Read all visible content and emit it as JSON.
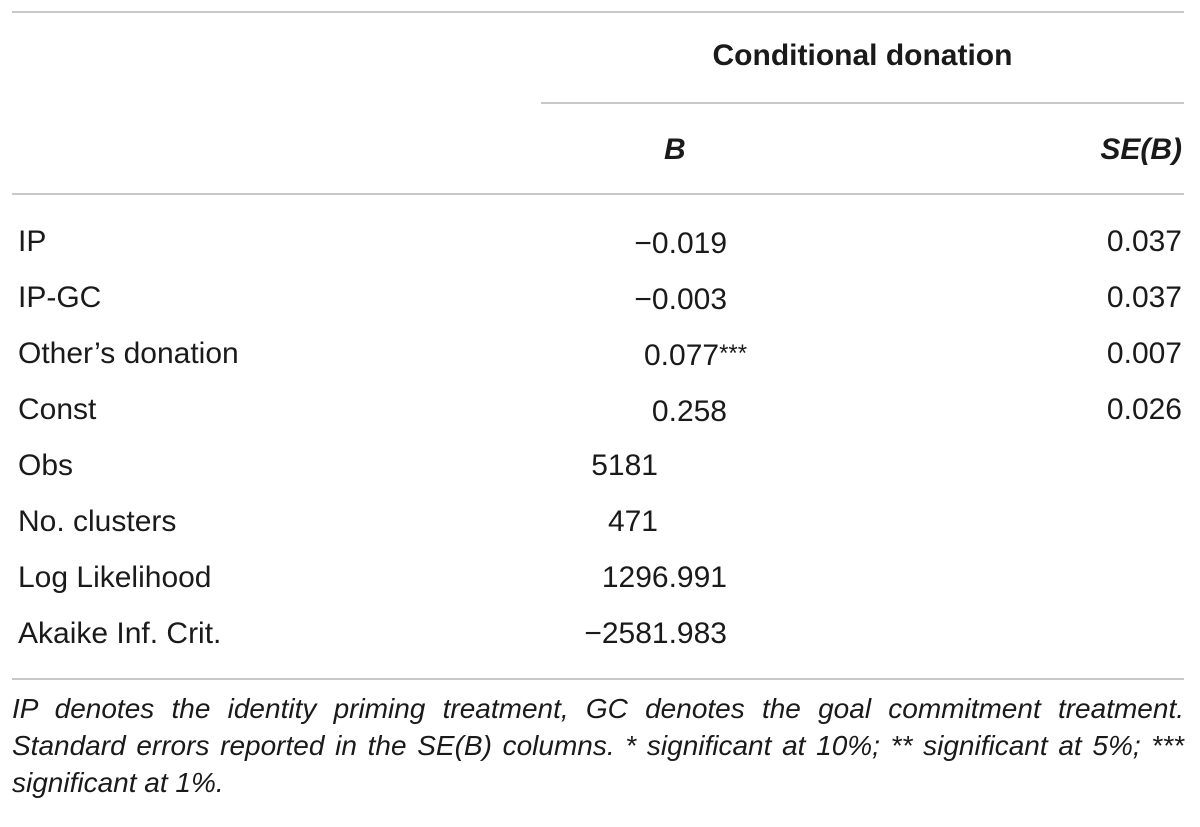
{
  "table": {
    "group_header": "Conditional donation",
    "columns": [
      "B",
      "SE(B)"
    ],
    "rows": [
      {
        "label": "IP",
        "b": "−0.019",
        "stars": "",
        "se": "0.037"
      },
      {
        "label": "IP-GC",
        "b": "−0.003",
        "stars": "",
        "se": "0.037"
      },
      {
        "label": "Other’s donation",
        "b": "0.077",
        "stars": "***",
        "se": "0.007"
      },
      {
        "label": "Const",
        "b": "0.258",
        "stars": "",
        "se": "0.026"
      }
    ],
    "stats": [
      {
        "label": "Obs",
        "value": "5181"
      },
      {
        "label": "No. clusters",
        "value": "471"
      },
      {
        "label": "Log Likelihood",
        "value": "1296.991"
      },
      {
        "label": "Akaike Inf. Crit.",
        "value": "−2581.983"
      }
    ],
    "note": "IP denotes the identity priming treatment, GC denotes the goal commitment treatment. Standard errors reported in the SE(B) columns. * significant at 10%; ** significant at 5%; *** significant at 1%."
  }
}
